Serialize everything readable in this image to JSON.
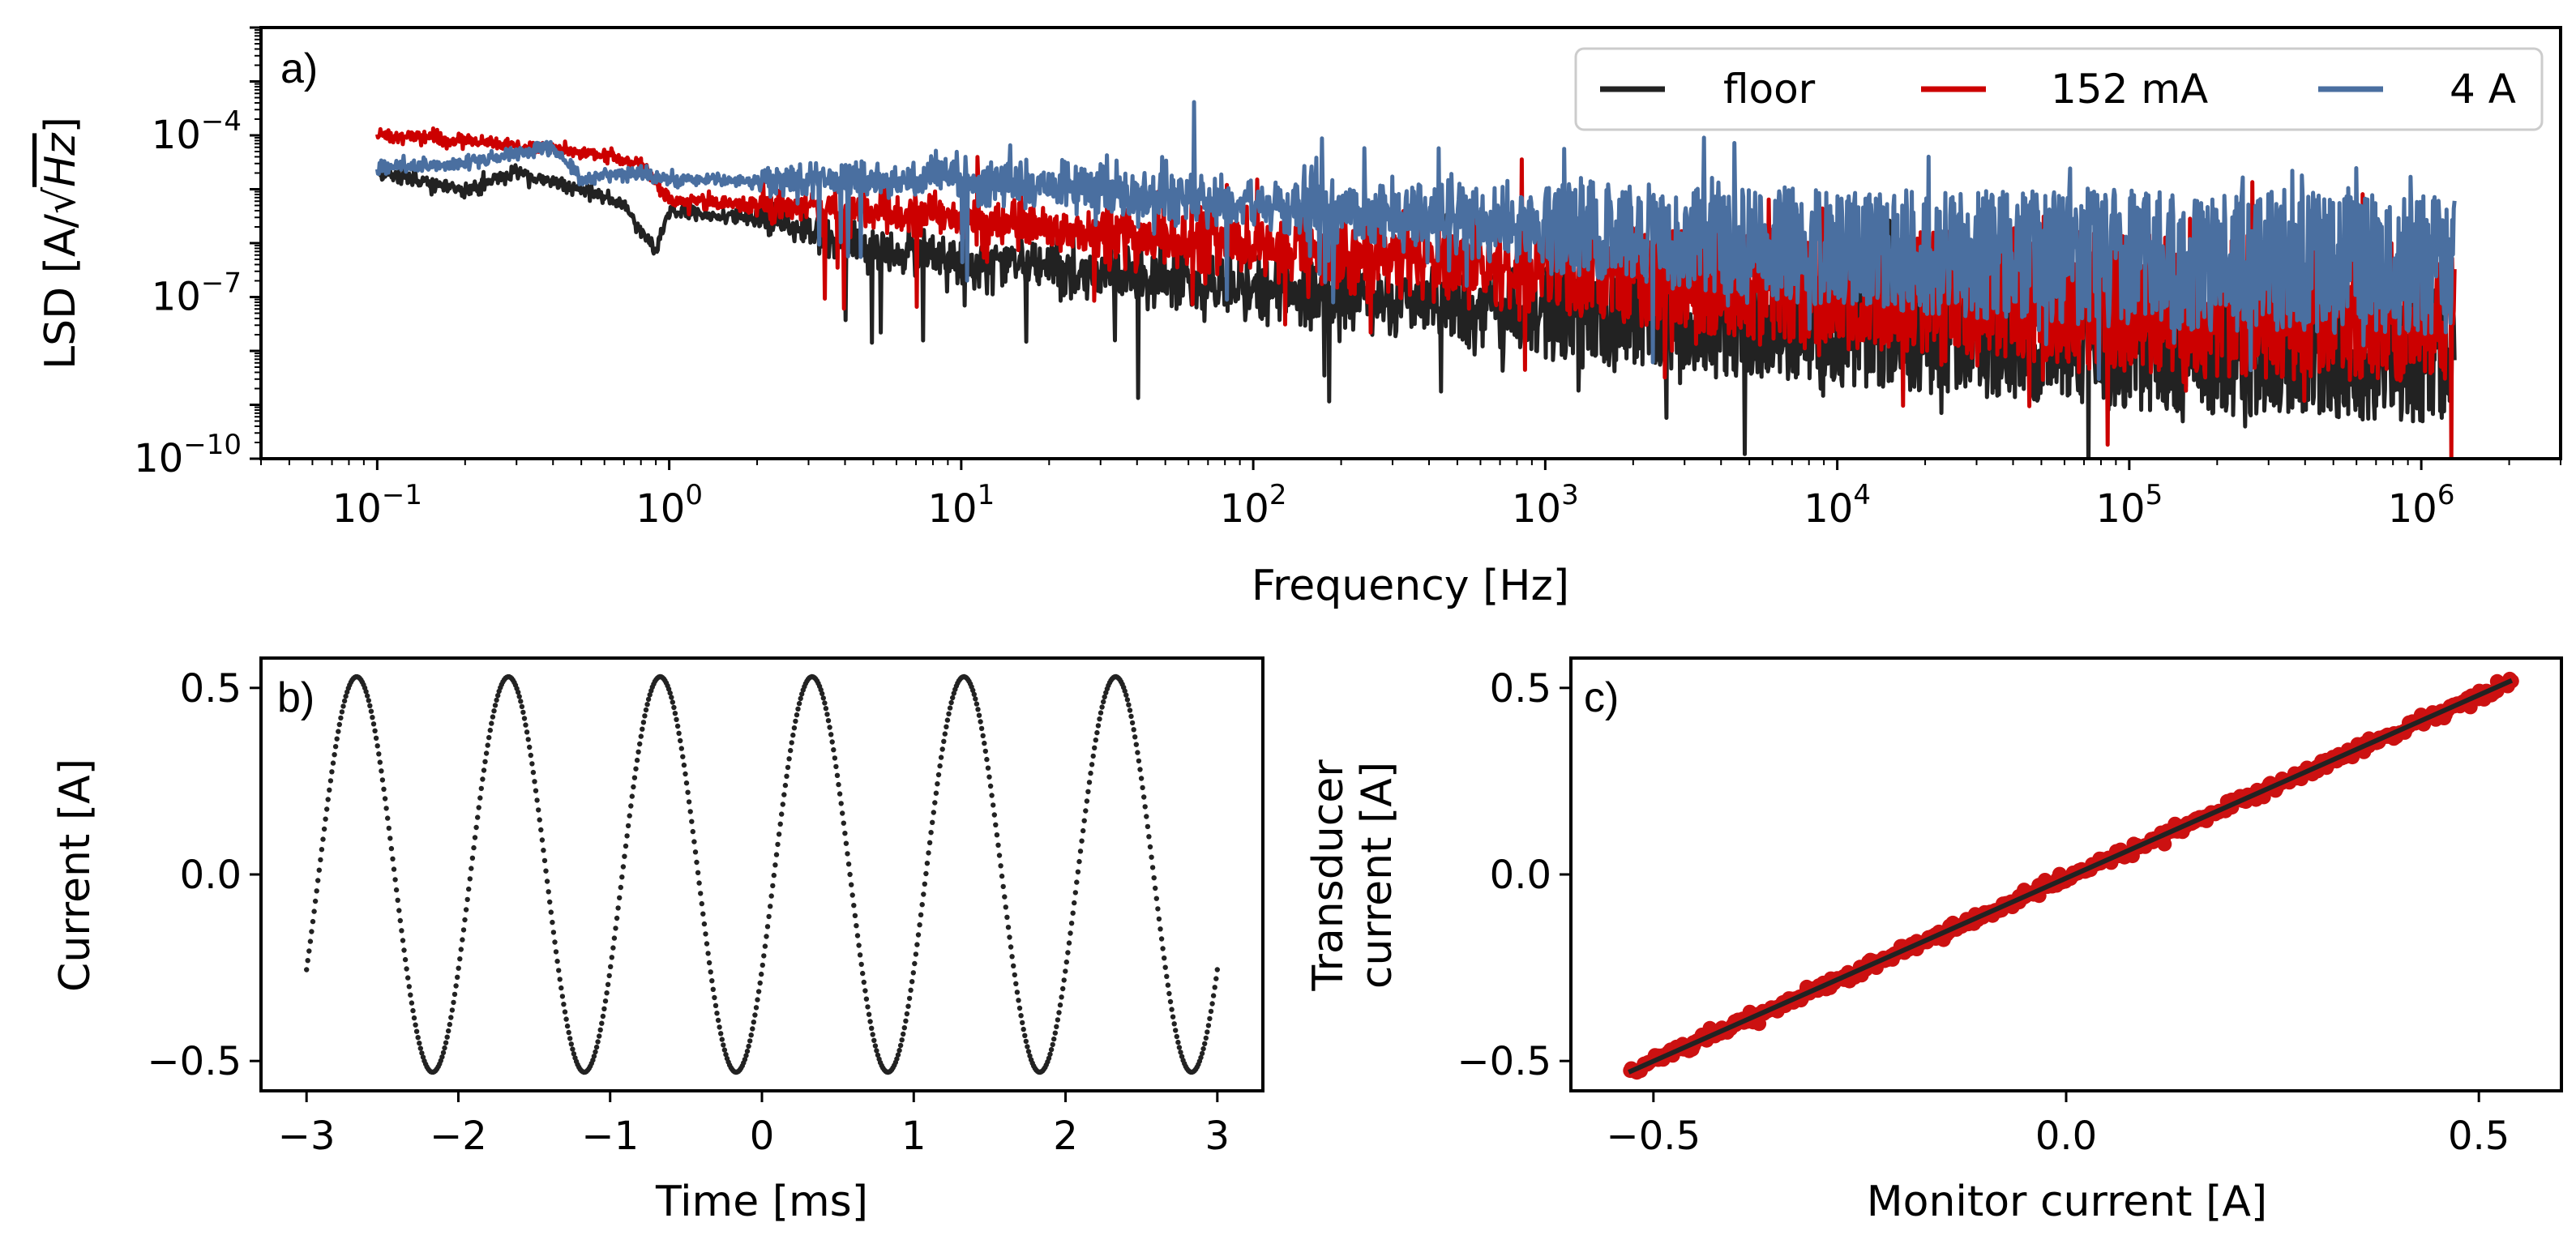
{
  "colors": {
    "floor": "#222222",
    "low": "#cc0000",
    "high": "#4a6fa0",
    "dots": "#222222",
    "fit": "#222222",
    "scatter": "#cc1111"
  },
  "panel_a": {
    "label": "a)",
    "ylabel": "LSD [A/√Hz]",
    "ylabel_prefix": "LSD [A/",
    "ylabel_rad": "Hz",
    "ylabel_suffix": "]",
    "xlabel": "Frequency [Hz]",
    "xticks": [
      {
        "exp": "−1",
        "value": 0.1
      },
      {
        "exp": "0",
        "value": 1
      },
      {
        "exp": "1",
        "value": 10
      },
      {
        "exp": "2",
        "value": 100
      },
      {
        "exp": "3",
        "value": 1000
      },
      {
        "exp": "4",
        "value": 10000
      },
      {
        "exp": "5",
        "value": 100000
      },
      {
        "exp": "6",
        "value": 1000000
      }
    ],
    "yticks": [
      {
        "exp": "−4",
        "value": 0.0001
      },
      {
        "exp": "−7",
        "value": 1e-07
      },
      {
        "exp": "−10",
        "value": 1e-10
      }
    ],
    "legend": [
      "floor",
      "152 mA",
      "4 A"
    ]
  },
  "panel_b": {
    "label": "b)",
    "xlabel": "Time [ms]",
    "ylabel": "Current [A]",
    "xticks": [
      "−3",
      "−2",
      "−1",
      "0",
      "1",
      "2",
      "3"
    ],
    "yticks": [
      "0.5",
      "0.0",
      "−0.5"
    ]
  },
  "panel_c": {
    "label": "c)",
    "xlabel": "Monitor current [A]",
    "ylabel_line1": "Transducer",
    "ylabel_line2": "current [A]",
    "xticks": [
      "−0.5",
      "0.0",
      "0.5"
    ],
    "yticks": [
      "0.5",
      "0.0",
      "−0.5"
    ]
  },
  "chart_data": [
    {
      "type": "line",
      "title": "",
      "xlabel": "Frequency [Hz]",
      "ylabel": "LSD [A/√Hz]",
      "xscale": "log",
      "yscale": "log",
      "xlim": [
        0.04,
        3000000
      ],
      "ylim": [
        1e-10,
        0.01
      ],
      "legend_position": "top-right",
      "series": [
        {
          "name": "floor",
          "x": [
            0.1,
            0.2,
            0.3,
            0.5,
            0.7,
            0.9,
            1,
            2,
            5,
            10,
            30,
            100,
            1000,
            10000,
            100000,
            1000000,
            1300000
          ],
          "y_mid": [
            2e-05,
            1e-05,
            2e-05,
            1e-05,
            5e-06,
            7e-07,
            4e-06,
            3e-06,
            8e-07,
            5e-07,
            3e-07,
            1.5e-07,
            5e-08,
            3e-08,
            1.5e-08,
            1e-08,
            1e-08
          ]
        },
        {
          "name": "152 mA",
          "x": [
            0.1,
            0.2,
            0.5,
            0.8,
            1,
            2,
            5,
            10,
            30,
            100,
            1000,
            10000,
            100000,
            1000000,
            1300000
          ],
          "y_mid": [
            0.0001,
            8e-05,
            5e-05,
            3e-05,
            6e-06,
            5e-06,
            4e-06,
            3e-06,
            1.5e-06,
            8e-07,
            3e-07,
            1.5e-07,
            8e-08,
            5e-08,
            5e-08
          ]
        },
        {
          "name": "4 A",
          "x": [
            0.1,
            0.2,
            0.4,
            0.5,
            0.7,
            1,
            2,
            5,
            10,
            30,
            100,
            1000,
            10000,
            100000,
            1000000,
            1300000
          ],
          "y_mid": [
            2.5e-05,
            3e-05,
            6e-05,
            1.5e-05,
            2e-05,
            1.5e-05,
            1.5e-05,
            1.5e-05,
            1.5e-05,
            1e-05,
            5e-06,
            2e-06,
            8e-07,
            5e-07,
            4e-07,
            4e-07
          ]
        }
      ]
    },
    {
      "type": "scatter",
      "title": "",
      "xlabel": "Time [ms]",
      "ylabel": "Current [A]",
      "xlim": [
        -3.3,
        3.3
      ],
      "ylim": [
        -0.58,
        0.58
      ],
      "series": [
        {
          "x_range": [
            -3,
            3
          ],
          "function": "0.53*cos(2*pi*(t-0.33))",
          "amplitude": 0.53,
          "frequency_kHz": 1.0,
          "peak_times_ms": [
            -2.67,
            -1.67,
            -0.67,
            0.33,
            1.33,
            2.33
          ]
        }
      ]
    },
    {
      "type": "scatter",
      "title": "",
      "xlabel": "Monitor current [A]",
      "ylabel": "Transducer current [A]",
      "xlim": [
        -0.6,
        0.6
      ],
      "ylim": [
        -0.58,
        0.58
      ],
      "series": [
        {
          "x_range": [
            -0.53,
            0.54
          ],
          "y_range": [
            -0.53,
            0.52
          ],
          "slope": 0.98
        }
      ]
    }
  ]
}
